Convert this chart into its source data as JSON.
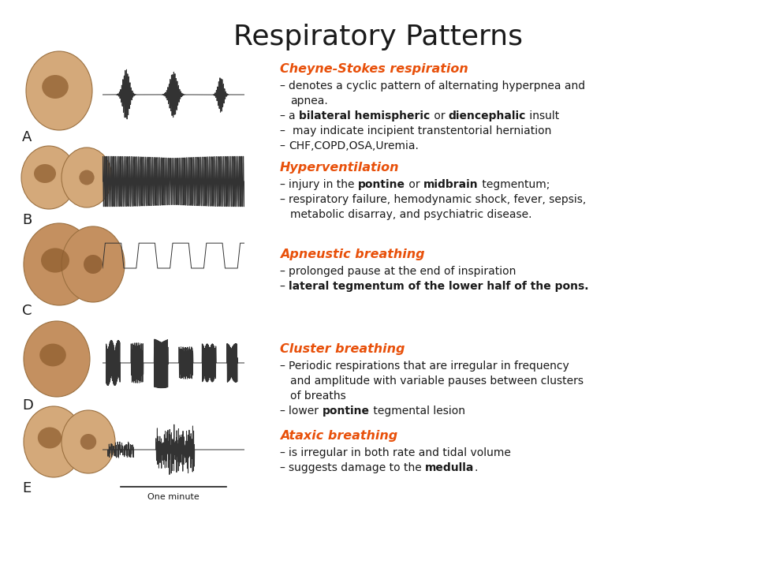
{
  "title": "Respiratory Patterns",
  "title_fontsize": 26,
  "bg_color": "#ffffff",
  "orange_color": "#e8500a",
  "black_color": "#1a1a1a",
  "sections": [
    {
      "label": "A",
      "pattern": "cheyne_stokes",
      "title": "Cheyne-Stokes respiration",
      "lines": [
        [
          {
            "t": "– ",
            "b": false
          },
          {
            "t": "denotes a cyclic pattern of alternating hyperpnea and",
            "b": false
          }
        ],
        [
          {
            "t": "   ",
            "b": false
          },
          {
            "t": "apnea.",
            "b": false
          }
        ],
        [
          {
            "t": "– ",
            "b": false
          },
          {
            "t": "a ",
            "b": false
          },
          {
            "t": "bilateral hemispheric",
            "b": true
          },
          {
            "t": " or ",
            "b": false
          },
          {
            "t": "diencephalic",
            "b": true
          },
          {
            "t": " insult",
            "b": false
          }
        ],
        [
          {
            "t": "–  ",
            "b": false
          },
          {
            "t": "may indicate incipient transtentorial herniation",
            "b": false
          }
        ],
        [
          {
            "t": "– ",
            "b": false
          },
          {
            "t": "CHF,COPD,OSA,Uremia.",
            "b": false
          }
        ]
      ]
    },
    {
      "label": "B",
      "pattern": "hyperventilation",
      "title": "Hyperventilation",
      "lines": [
        [
          {
            "t": "– ",
            "b": false
          },
          {
            "t": "injury in the ",
            "b": false
          },
          {
            "t": "pontine",
            "b": true
          },
          {
            "t": " or ",
            "b": false
          },
          {
            "t": "midbrain",
            "b": true
          },
          {
            "t": " tegmentum;",
            "b": false
          }
        ],
        [
          {
            "t": "– ",
            "b": false
          },
          {
            "t": "respiratory failure, hemodynamic shock, fever, sepsis,",
            "b": false
          }
        ],
        [
          {
            "t": "   ",
            "b": false
          },
          {
            "t": "metabolic disarray, and psychiatric disease.",
            "b": false
          }
        ]
      ]
    },
    {
      "label": "C",
      "pattern": "apneustic",
      "title": "Apneustic breathing",
      "lines": [
        [
          {
            "t": "– ",
            "b": false
          },
          {
            "t": "prolonged pause at the end of inspiration",
            "b": false
          }
        ],
        [
          {
            "t": "– ",
            "b": false
          },
          {
            "t": "lateral tegmentum of the lower half of the pons.",
            "b": true
          }
        ]
      ]
    },
    {
      "label": "D",
      "pattern": "cluster",
      "title": "Cluster breathing",
      "lines": [
        [
          {
            "t": "– ",
            "b": false
          },
          {
            "t": "Periodic respirations that are irregular in frequency",
            "b": false
          }
        ],
        [
          {
            "t": "   ",
            "b": false
          },
          {
            "t": "and amplitude with variable pauses between clusters",
            "b": false
          }
        ],
        [
          {
            "t": "   ",
            "b": false
          },
          {
            "t": "of breaths",
            "b": false
          }
        ],
        [
          {
            "t": "– ",
            "b": false
          },
          {
            "t": "lower ",
            "b": false
          },
          {
            "t": "pontine",
            "b": true
          },
          {
            "t": " tegmental lesion",
            "b": false
          }
        ]
      ]
    },
    {
      "label": "E",
      "pattern": "ataxic",
      "title": "Ataxic breathing",
      "lines": [
        [
          {
            "t": "– ",
            "b": false
          },
          {
            "t": "is irregular in both rate and tidal volume",
            "b": false
          }
        ],
        [
          {
            "t": "– ",
            "b": false
          },
          {
            "t": "suggests damage to the ",
            "b": false
          },
          {
            "t": "medulla",
            "b": true
          },
          {
            "t": ".",
            "b": false
          }
        ]
      ]
    }
  ]
}
